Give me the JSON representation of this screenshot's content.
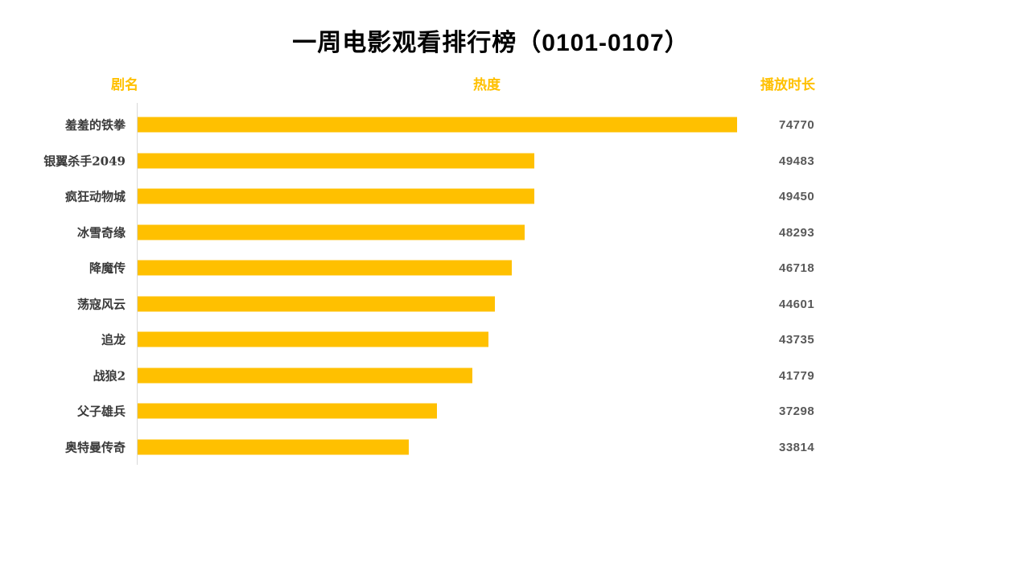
{
  "page": {
    "title": "一周电影观看排行榜（0101-0107）"
  },
  "columns": {
    "name": "剧名",
    "heat": "热度",
    "duration": "播放时长"
  },
  "colors": {
    "accent_gold": "#FFC000",
    "value_text": "#595959",
    "label_text": "#3a3a3a",
    "axis_line": "#D9D9D9",
    "title_text": "#000000",
    "background": "#ffffff"
  },
  "chart_data": {
    "type": "bar",
    "orientation": "horizontal",
    "title": "一周电影观看排行榜（0101-0107）",
    "category_column_label": "剧名",
    "bar_column_label": "热度",
    "value_column_label": "播放时长",
    "categories": [
      "羞羞的铁拳",
      "银翼杀手2049",
      "疯狂动物城",
      "冰雪奇缘",
      "降魔传",
      "荡寇风云",
      "追龙",
      "战狼2",
      "父子雄兵",
      "奥特曼传奇"
    ],
    "values": [
      74770,
      49483,
      49450,
      48293,
      46718,
      44601,
      43735,
      41779,
      37298,
      33814
    ],
    "xlim": [
      0,
      74770
    ],
    "grid": false,
    "legend": "none",
    "bar_color": "#FFC000"
  }
}
